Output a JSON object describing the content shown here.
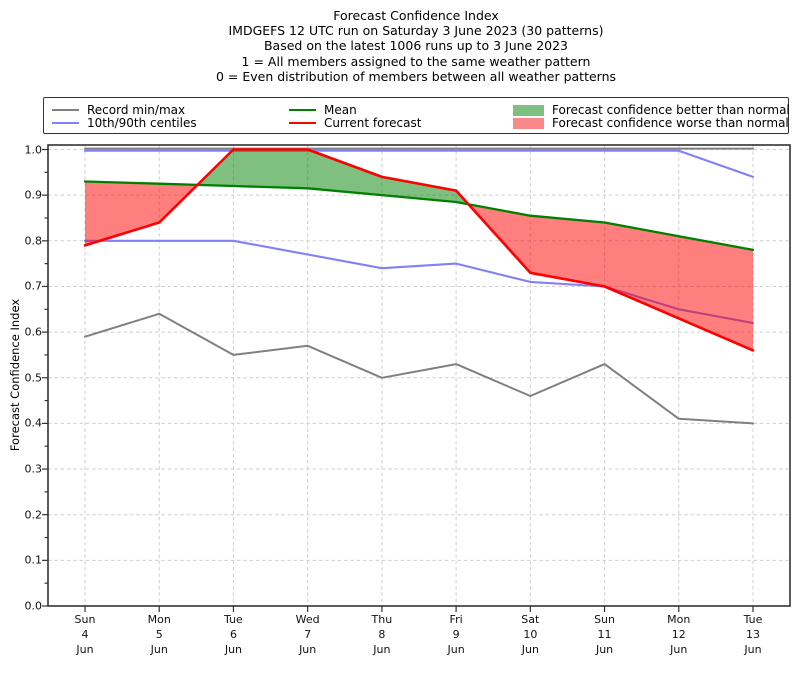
{
  "title": {
    "line1": "Forecast Confidence Index",
    "line2": "IMDGEFS 12 UTC run on Saturday 3 June 2023 (30 patterns)",
    "line3": "Based on the latest 1006 runs up to 3 June 2023",
    "line4": "1 = All members assigned to the same weather pattern",
    "line5": "0 = Even distribution of members between all weather patterns"
  },
  "legend": {
    "items": [
      {
        "label": "Record min/max",
        "type": "line",
        "color": "#808080"
      },
      {
        "label": "10th/90th centiles",
        "type": "line",
        "color": "#8080f8"
      },
      {
        "label": "Mean",
        "type": "line",
        "color": "#008000"
      },
      {
        "label": "Current forecast",
        "type": "line",
        "color": "#ff0000"
      },
      {
        "label": "Forecast confidence better than normal",
        "type": "patch",
        "color": "#7fbf7f"
      },
      {
        "label": "Forecast confidence worse than normal",
        "type": "patch",
        "color": "#f98989"
      }
    ]
  },
  "chart_data": {
    "type": "line",
    "title": "Forecast Confidence Index",
    "ylabel": "Forecast Confidence Index",
    "ylim": [
      0.0,
      1.0
    ],
    "ytick_step": 0.1,
    "grid": true,
    "legend_position": "top",
    "yticks": [
      "0.0",
      "0.1",
      "0.2",
      "0.3",
      "0.4",
      "0.5",
      "0.6",
      "0.7",
      "0.8",
      "0.9",
      "1.0"
    ],
    "x_categories": [
      {
        "day": "Sun",
        "date": "4",
        "month": "Jun"
      },
      {
        "day": "Mon",
        "date": "5",
        "month": "Jun"
      },
      {
        "day": "Tue",
        "date": "6",
        "month": "Jun"
      },
      {
        "day": "Wed",
        "date": "7",
        "month": "Jun"
      },
      {
        "day": "Thu",
        "date": "8",
        "month": "Jun"
      },
      {
        "day": "Fri",
        "date": "9",
        "month": "Jun"
      },
      {
        "day": "Sat",
        "date": "10",
        "month": "Jun"
      },
      {
        "day": "Sun",
        "date": "11",
        "month": "Jun"
      },
      {
        "day": "Mon",
        "date": "12",
        "month": "Jun"
      },
      {
        "day": "Tue",
        "date": "13",
        "month": "Jun"
      }
    ],
    "series": [
      {
        "name": "Record max",
        "color": "#808080",
        "width": 2,
        "values": [
          1.0,
          1.0,
          1.0,
          1.0,
          1.0,
          1.0,
          1.0,
          1.0,
          1.0,
          1.0
        ]
      },
      {
        "name": "Record min",
        "color": "#808080",
        "width": 2,
        "values": [
          0.59,
          0.64,
          0.55,
          0.57,
          0.5,
          0.53,
          0.46,
          0.53,
          0.41,
          0.4
        ]
      },
      {
        "name": "90th centile",
        "color": "#8080f8",
        "width": 2.1,
        "values": [
          1.0,
          1.0,
          1.0,
          1.0,
          1.0,
          1.0,
          1.0,
          1.0,
          1.0,
          0.94
        ]
      },
      {
        "name": "10th centile",
        "color": "#8080f8",
        "width": 2.1,
        "values": [
          0.8,
          0.8,
          0.8,
          0.77,
          0.74,
          0.75,
          0.71,
          0.7,
          0.65,
          0.62
        ]
      },
      {
        "name": "Mean",
        "color": "#008000",
        "width": 2.3,
        "values": [
          0.93,
          0.925,
          0.92,
          0.915,
          0.9,
          0.885,
          0.855,
          0.84,
          0.81,
          0.78
        ]
      },
      {
        "name": "Current forecast",
        "color": "#ff0000",
        "width": 2.6,
        "values": [
          0.79,
          0.84,
          1.0,
          1.0,
          0.94,
          0.91,
          0.73,
          0.7,
          0.63,
          0.56
        ]
      }
    ],
    "fills": {
      "better_color": "#008000",
      "worse_color": "#ff0000",
      "opacity": 0.5,
      "better_label": "Forecast confidence better than normal",
      "worse_label": "Forecast confidence worse than normal"
    }
  }
}
